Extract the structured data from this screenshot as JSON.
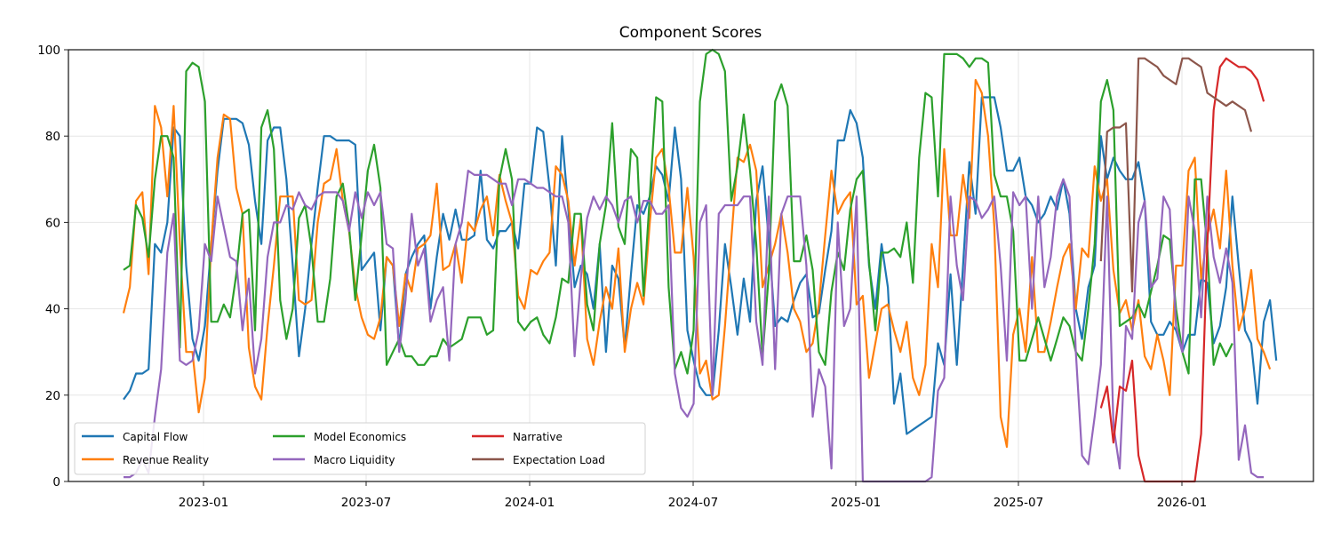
{
  "chart_data": {
    "type": "line",
    "title": "Component Scores",
    "xlabel": "",
    "ylabel": "",
    "ylim": [
      0,
      100
    ],
    "yticks": [
      0,
      20,
      40,
      60,
      80,
      100
    ],
    "xtick_labels": [
      "2023-01",
      "2023-07",
      "2024-01",
      "2024-07",
      "2025-01",
      "2025-07",
      "2026-01"
    ],
    "grid": true,
    "legend_position": "lower left",
    "x_start": "2022-10-24",
    "x_end": "2026-03-30",
    "frequency": "weekly",
    "series": [
      {
        "name": "Capital Flow",
        "color": "#1f77b4",
        "start_index": 0,
        "values": [
          19,
          21,
          25,
          25,
          26,
          55,
          53,
          60,
          82,
          80,
          50,
          33,
          28,
          36,
          55,
          72,
          84,
          84,
          84,
          83,
          78,
          65,
          55,
          79,
          82,
          82,
          70,
          50,
          29,
          40,
          55,
          68,
          80,
          80,
          79,
          79,
          79,
          78,
          49,
          51,
          53,
          35,
          52,
          50,
          31,
          48,
          52,
          55,
          57,
          40,
          52,
          62,
          56,
          63,
          56,
          56,
          57,
          72,
          56,
          54,
          58,
          58,
          60,
          54,
          69,
          69,
          82,
          81,
          68,
          50,
          80,
          63,
          45,
          50,
          48,
          40,
          55,
          30,
          50,
          47,
          31,
          48,
          64,
          62,
          66,
          73,
          71,
          65,
          82,
          70,
          35,
          28,
          22,
          20,
          20,
          35,
          55,
          45,
          34,
          47,
          37,
          65,
          73,
          56,
          36,
          38,
          37,
          42,
          46,
          48,
          38,
          39,
          49,
          58,
          79,
          79,
          86,
          83,
          75,
          50,
          40,
          55,
          45,
          18,
          25,
          11,
          12,
          13,
          14,
          15,
          32,
          27,
          48,
          27,
          50,
          74,
          62,
          89,
          89,
          89,
          82,
          72,
          72,
          75,
          66,
          64,
          60,
          62,
          66,
          63,
          70,
          62,
          40,
          33,
          45,
          50,
          80,
          70,
          75,
          72,
          70,
          70,
          74,
          65,
          37,
          34,
          34,
          37,
          35,
          30,
          34,
          34,
          47,
          46,
          32,
          36,
          45,
          66,
          50,
          35,
          32,
          18,
          37,
          42,
          28
        ]
      },
      {
        "name": "Revenue Reality",
        "color": "#ff7f0e",
        "start_index": 0,
        "values": [
          39,
          45,
          65,
          67,
          48,
          87,
          82,
          66,
          87,
          55,
          30,
          30,
          16,
          24,
          55,
          75,
          85,
          84,
          68,
          62,
          31,
          22,
          19,
          36,
          50,
          66,
          66,
          66,
          42,
          41,
          42,
          60,
          69,
          70,
          77,
          65,
          58,
          45,
          38,
          34,
          33,
          38,
          52,
          50,
          36,
          48,
          44,
          54,
          55,
          57,
          69,
          49,
          50,
          55,
          46,
          60,
          58,
          63,
          66,
          57,
          71,
          65,
          60,
          43,
          40,
          49,
          48,
          51,
          53,
          73,
          71,
          65,
          50,
          61,
          33,
          27,
          37,
          45,
          40,
          54,
          30,
          40,
          46,
          41,
          60,
          75,
          77,
          68,
          53,
          53,
          68,
          52,
          25,
          28,
          19,
          20,
          36,
          56,
          75,
          74,
          78,
          72,
          45,
          50,
          55,
          62,
          53,
          40,
          37,
          30,
          32,
          41,
          57,
          72,
          62,
          65,
          67,
          41,
          43,
          24,
          32,
          40,
          41,
          35,
          30,
          37,
          24,
          20,
          27,
          55,
          45,
          77,
          57,
          57,
          71,
          61,
          93,
          90,
          80,
          59,
          15,
          8,
          34,
          40,
          30,
          52,
          30,
          30,
          37,
          45,
          52,
          55,
          40,
          54,
          52,
          73,
          65,
          70,
          49,
          39,
          42,
          35,
          42,
          29,
          26,
          34,
          28,
          20,
          50,
          50,
          72,
          75,
          47,
          57,
          63,
          54,
          72,
          50,
          35,
          40,
          49,
          33,
          30,
          26
        ]
      },
      {
        "name": "Model Economics",
        "color": "#2ca02c",
        "start_index": 0,
        "values": [
          49,
          50,
          64,
          61,
          52,
          70,
          80,
          80,
          75,
          31,
          95,
          97,
          96,
          88,
          37,
          37,
          41,
          38,
          48,
          62,
          63,
          35,
          82,
          86,
          77,
          42,
          33,
          40,
          61,
          64,
          54,
          37,
          37,
          47,
          66,
          69,
          59,
          42,
          57,
          72,
          78,
          68,
          27,
          30,
          33,
          29,
          29,
          27,
          27,
          29,
          29,
          33,
          31,
          32,
          33,
          38,
          38,
          38,
          34,
          35,
          70,
          77,
          70,
          37,
          35,
          37,
          38,
          34,
          32,
          38,
          47,
          46,
          62,
          62,
          41,
          35,
          55,
          64,
          83,
          59,
          55,
          77,
          75,
          43,
          66,
          89,
          88,
          45,
          26,
          30,
          25,
          35,
          88,
          99,
          100,
          99,
          95,
          65,
          73,
          85,
          72,
          55,
          29,
          48,
          88,
          92,
          87,
          51,
          51,
          57,
          49,
          30,
          27,
          44,
          53,
          49,
          63,
          70,
          72,
          51,
          35,
          53,
          53,
          54,
          52,
          60,
          46,
          75,
          90,
          89,
          66,
          99,
          99,
          99,
          98,
          96,
          98,
          98,
          97,
          71,
          66,
          66,
          58,
          28,
          28,
          33,
          38,
          33,
          28,
          33,
          38,
          36,
          30,
          28,
          40,
          55,
          88,
          93,
          86,
          36,
          37,
          38,
          41,
          38,
          44,
          50,
          57,
          56,
          40,
          30,
          25,
          70,
          70,
          54,
          27,
          32,
          29,
          32
        ]
      },
      {
        "name": "Macro Liquidity",
        "color": "#9467bd",
        "start_index": 0,
        "values": [
          1,
          1,
          2,
          5,
          2,
          15,
          26,
          53,
          62,
          28,
          27,
          28,
          35,
          55,
          51,
          66,
          59,
          52,
          51,
          35,
          47,
          25,
          33,
          52,
          60,
          60,
          64,
          63,
          67,
          64,
          63,
          66,
          67,
          67,
          67,
          65,
          58,
          67,
          61,
          67,
          64,
          67,
          55,
          54,
          30,
          42,
          62,
          50,
          54,
          37,
          42,
          45,
          28,
          55,
          60,
          72,
          71,
          71,
          71,
          70,
          69,
          69,
          64,
          70,
          70,
          69,
          68,
          68,
          67,
          66,
          66,
          60,
          29,
          47,
          61,
          66,
          63,
          66,
          64,
          60,
          65,
          66,
          60,
          65,
          65,
          62,
          62,
          64,
          25,
          17,
          15,
          18,
          60,
          64,
          20,
          62,
          64,
          64,
          64,
          66,
          66,
          37,
          27,
          66,
          26,
          62,
          66,
          66,
          66,
          50,
          15,
          26,
          22,
          3,
          60,
          36,
          40,
          66,
          0,
          0,
          0,
          0,
          0,
          0,
          0,
          0,
          0,
          0,
          0,
          1,
          21,
          24,
          66,
          50,
          42,
          66,
          65,
          61,
          63,
          66,
          50,
          28,
          67,
          64,
          66,
          40,
          66,
          45,
          52,
          66,
          70,
          66,
          30,
          6,
          4,
          15,
          27,
          66,
          13,
          3,
          36,
          33,
          60,
          65,
          45,
          47,
          66,
          63,
          36,
          30,
          66,
          58,
          38,
          66,
          52,
          46,
          54,
          46,
          5,
          13,
          2,
          1,
          1
        ]
      },
      {
        "name": "Narrative",
        "color": "#d62728",
        "start_index": 156,
        "values": [
          17,
          22,
          9,
          22,
          21,
          28,
          6,
          0,
          0,
          0,
          0,
          0,
          0,
          0,
          0,
          0,
          11,
          55,
          86,
          96,
          98,
          97,
          96,
          96,
          95,
          93,
          88
        ]
      },
      {
        "name": "Expectation Load",
        "color": "#8c564b",
        "start_index": 156,
        "values": [
          51,
          81,
          82,
          82,
          83,
          44,
          98,
          98,
          97,
          96,
          94,
          93,
          92,
          98,
          98,
          97,
          96,
          90,
          89,
          88,
          87,
          88,
          87,
          86,
          81
        ]
      }
    ]
  }
}
